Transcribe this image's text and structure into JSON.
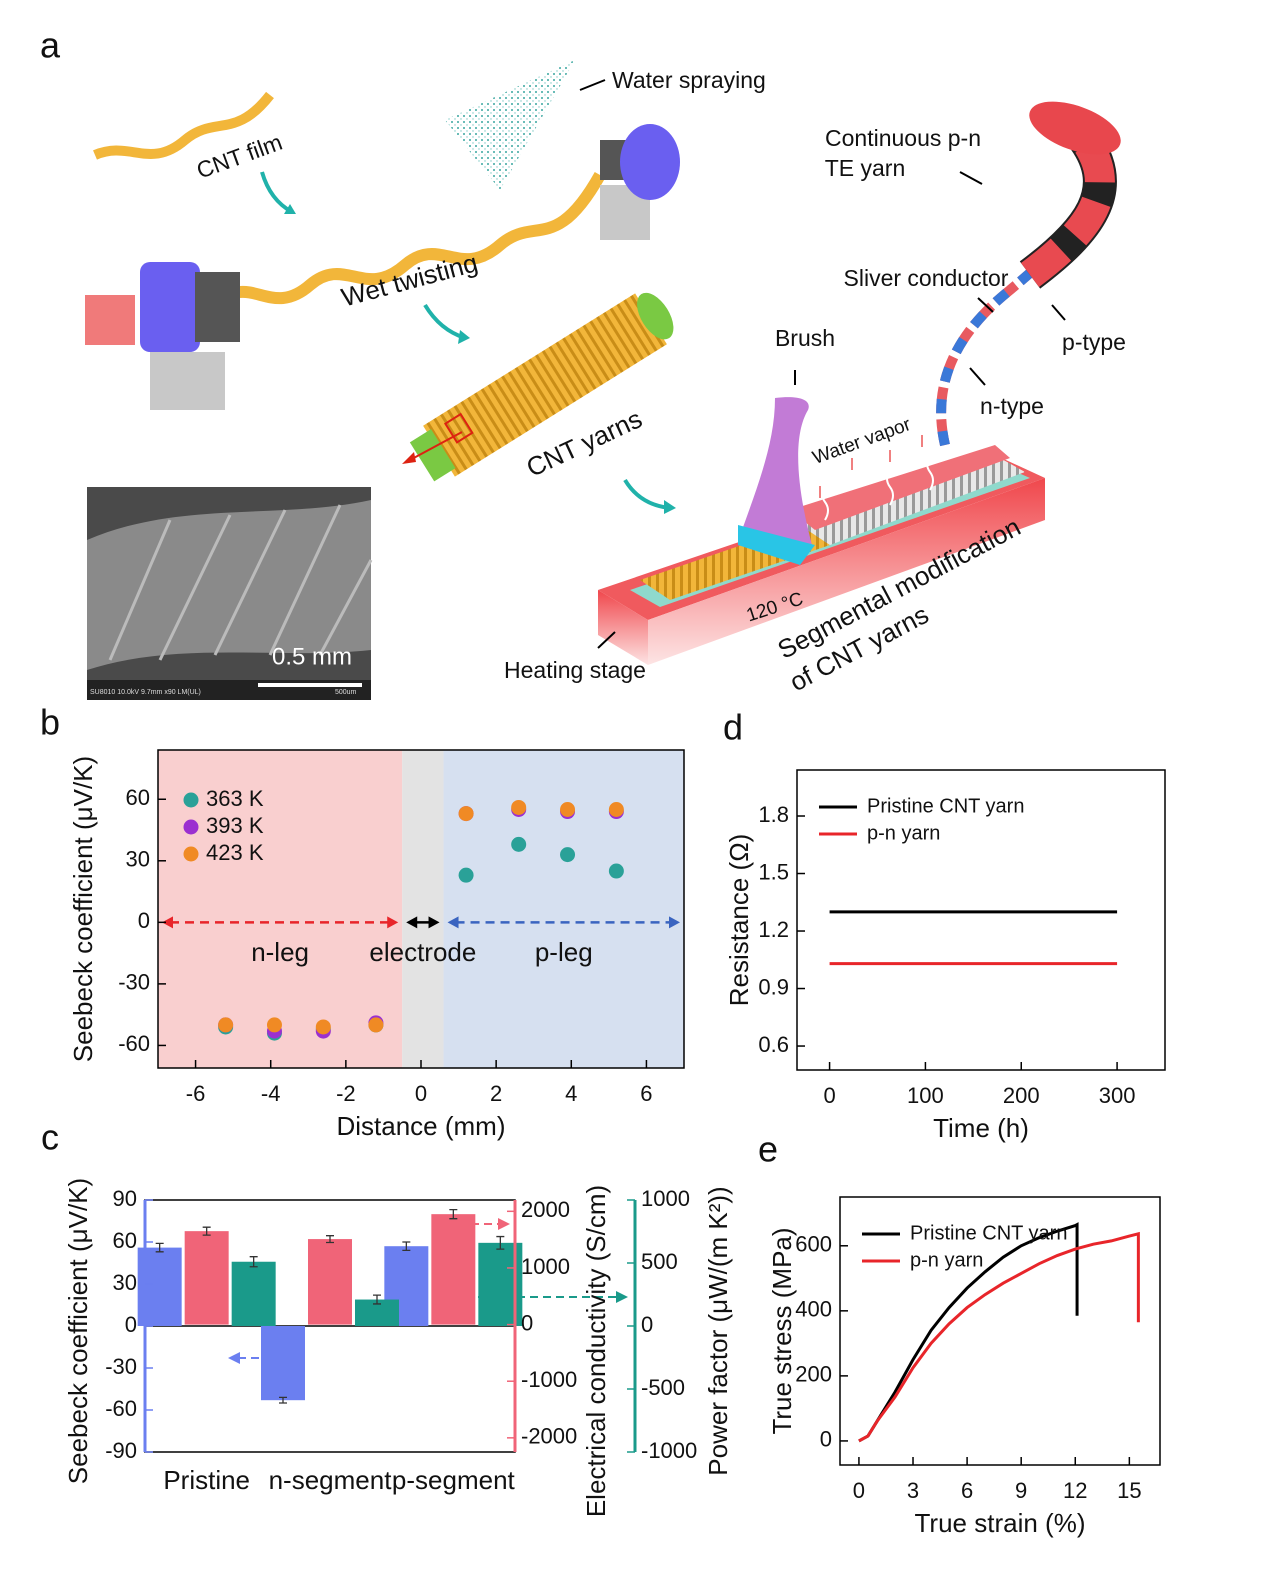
{
  "panel_a": {
    "label": "a",
    "cnt_film": "CNT film",
    "water_spraying": "Water spraying",
    "wet_twisting": "Wet twisting",
    "cnt_yarns": "CNT yarns",
    "te_yarn": [
      "Continuous p-n",
      "TE yarn"
    ],
    "sliver_conductor": "Sliver conductor",
    "p_type": "p-type",
    "n_type": "n-type",
    "brush": "Brush",
    "water_vapor": "Water vapor",
    "temperature": "120 °C",
    "segmental": [
      "Segmental modification",
      "of CNT yarns"
    ],
    "heating_stage": "Heating stage",
    "scale": "0.5 mm",
    "sem_info": "SU8010 10.0kV 9.7mm x90 LM(UL)",
    "sem_scale": "500um"
  },
  "chart_data": [
    {
      "type": "scatter",
      "panel": "b",
      "xlabel": "Distance (mm)",
      "ylabel": "Seebeck coefficient (μV/K)",
      "x": [
        -5.2,
        -3.9,
        -2.6,
        -1.2,
        1.2,
        2.6,
        3.9,
        5.2
      ],
      "series": [
        {
          "name": "363 K",
          "color": "#2aa198",
          "values": [
            -51,
            -54,
            -52,
            -50,
            23,
            38,
            33,
            25
          ]
        },
        {
          "name": "393 K",
          "color": "#9b30d0",
          "values": [
            -50,
            -53,
            -53,
            -49,
            53,
            55,
            54,
            54
          ]
        },
        {
          "name": "423 K",
          "color": "#f08a24",
          "values": [
            -50,
            -50,
            -51,
            -50,
            53,
            56,
            55,
            55
          ]
        }
      ],
      "regions": [
        {
          "label": "n-leg",
          "from": -7,
          "to": -0.5,
          "color": "#f9cfcf",
          "arrow_color": "#e8252a"
        },
        {
          "label": "electrode",
          "from": -0.5,
          "to": 0.6,
          "color": "#e3e3e3",
          "arrow_color": "#000000"
        },
        {
          "label": "p-leg",
          "from": 0.6,
          "to": 7,
          "color": "#d6e0f0",
          "arrow_color": "#3a64c0"
        }
      ],
      "xlim": [
        -7,
        7
      ],
      "xticks": [
        -6,
        -4,
        -2,
        0,
        2,
        4,
        6
      ],
      "ylim": [
        -71,
        84
      ],
      "yticks": [
        -60,
        -30,
        0,
        30,
        60
      ],
      "legend": "upper left"
    },
    {
      "type": "bar",
      "panel": "c",
      "categories": [
        "Pristine",
        "n-segment",
        "p-segment"
      ],
      "ylabel": "Seebeck coefficient (μV/K)",
      "y2label": "Electrical conductivity (S/cm)",
      "y3label": "Power factor (μW/(m K²))",
      "series": [
        {
          "name": "Seebeck coefficient",
          "color": "#6b7ff0",
          "axis": "y",
          "values": [
            56,
            -53,
            57
          ],
          "errors": [
            3,
            2,
            3
          ]
        },
        {
          "name": "Electrical conductivity",
          "color": "#f06478",
          "axis": "y2",
          "values": [
            1650,
            1510,
            1950
          ],
          "errors": [
            70,
            60,
            80
          ]
        },
        {
          "name": "Power factor",
          "color": "#1a9a8a",
          "axis": "y3",
          "values": [
            510,
            210,
            660
          ],
          "errors": [
            40,
            35,
            50
          ]
        }
      ],
      "ylim": [
        -90,
        90
      ],
      "yticks": [
        -90,
        -60,
        -30,
        0,
        30,
        60,
        90
      ],
      "y2lim": [
        -2250,
        2200
      ],
      "y2ticks": [
        -2000,
        -1000,
        0,
        1000,
        2000
      ],
      "y3lim": [
        -1000,
        1000
      ],
      "y3ticks": [
        -1000,
        -500,
        0,
        500,
        1000
      ]
    },
    {
      "type": "line",
      "panel": "d",
      "xlabel": "Time (h)",
      "ylabel": "Resistance (Ω)",
      "x": [
        0,
        50,
        100,
        150,
        200,
        250,
        300
      ],
      "series": [
        {
          "name": "Pristine CNT yarn",
          "color": "#000000",
          "values": [
            1.3,
            1.3,
            1.3,
            1.3,
            1.3,
            1.3,
            1.3
          ]
        },
        {
          "name": "p-n yarn",
          "color": "#e8252a",
          "values": [
            1.03,
            1.03,
            1.03,
            1.03,
            1.03,
            1.03,
            1.03
          ]
        }
      ],
      "xlim": [
        -34,
        350
      ],
      "xticks": [
        0,
        100,
        200,
        300
      ],
      "ylim": [
        0.475,
        2.04
      ],
      "yticks": [
        0.6,
        0.9,
        1.2,
        1.5,
        1.8
      ],
      "legend": "upper left"
    },
    {
      "type": "line",
      "panel": "e",
      "xlabel": "True strain (%)",
      "ylabel": "True stress (MPa)",
      "series": [
        {
          "name": "Pristine CNT yarn",
          "color": "#000000",
          "x": [
            0,
            0.5,
            1,
            2,
            3,
            4,
            5,
            6,
            7,
            8,
            9,
            10,
            11,
            12,
            12.1,
            12.1
          ],
          "values": [
            0,
            15,
            60,
            150,
            250,
            340,
            410,
            470,
            520,
            565,
            600,
            625,
            645,
            662,
            665,
            385
          ]
        },
        {
          "name": "p-n yarn",
          "color": "#e8252a",
          "x": [
            0,
            0.5,
            1,
            2,
            3,
            4,
            5,
            6,
            7,
            8,
            9,
            10,
            11,
            12,
            13,
            14,
            15,
            15.5,
            15.5
          ],
          "values": [
            0,
            15,
            60,
            135,
            225,
            300,
            360,
            410,
            450,
            485,
            515,
            545,
            570,
            590,
            605,
            615,
            630,
            637,
            365
          ]
        }
      ],
      "xlim": [
        -1.05,
        16.7
      ],
      "xticks": [
        0,
        3,
        6,
        9,
        12,
        15
      ],
      "ylim": [
        -74,
        750
      ],
      "yticks": [
        0,
        200,
        400,
        600
      ],
      "legend": "upper left"
    }
  ]
}
